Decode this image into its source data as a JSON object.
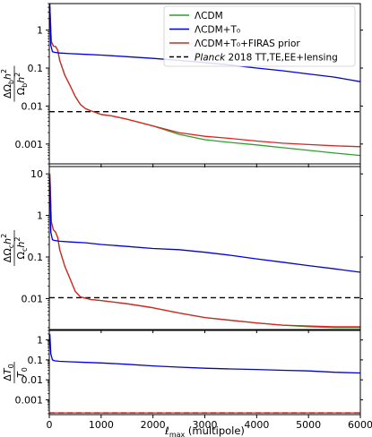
{
  "chart_data": [
    {
      "type": "line",
      "ylabel": "ΔΩ_b h² / Ω_b h²",
      "yscale": "log",
      "ylim": [
        0.0003,
        5
      ],
      "xlim": [
        0,
        6000
      ],
      "yticks": [
        {
          "v": 1,
          "label": "1"
        },
        {
          "v": 0.1,
          "label": "0.1"
        },
        {
          "v": 0.01,
          "label": "0.01"
        },
        {
          "v": 0.001,
          "label": "0.001"
        }
      ],
      "legend": {
        "placement": "top-right",
        "entries": [
          {
            "label": "ΛCDM",
            "series": "lcdm"
          },
          {
            "label": "ΛCDM+T₀",
            "series": "lcdm_t0"
          },
          {
            "label": "ΛCDM+T₀+FIRAS prior",
            "series": "lcdm_t0_firas"
          },
          {
            "label": "Planck 2018 TT,TE,EE+lensing",
            "series": "planck",
            "italic_prefix": "Planck"
          }
        ]
      },
      "series": [
        {
          "id": "lcdm",
          "name": "ΛCDM",
          "color": "#2ca02c",
          "style": "solid",
          "x": [
            10,
            40,
            80,
            120,
            160,
            200,
            300,
            400,
            500,
            600,
            700,
            800,
            1000,
            1200,
            1500,
            2000,
            2500,
            3000,
            3500,
            4000,
            4500,
            5000,
            5500,
            6000
          ],
          "y": [
            4,
            0.5,
            0.38,
            0.37,
            0.3,
            0.16,
            0.065,
            0.035,
            0.018,
            0.011,
            0.0085,
            0.0075,
            0.006,
            0.0055,
            0.0045,
            0.003,
            0.0018,
            0.0013,
            0.0011,
            0.00095,
            0.0008,
            0.00068,
            0.00058,
            0.0005
          ]
        },
        {
          "id": "lcdm_t0",
          "name": "ΛCDM+T₀",
          "color": "#0000dd",
          "style": "solid",
          "x": [
            10,
            30,
            60,
            100,
            200,
            400,
            700,
            1000,
            1500,
            2000,
            2500,
            3000,
            3500,
            4000,
            4500,
            5000,
            5500,
            6000
          ],
          "y": [
            5,
            0.4,
            0.27,
            0.26,
            0.25,
            0.24,
            0.23,
            0.22,
            0.2,
            0.18,
            0.16,
            0.14,
            0.12,
            0.1,
            0.085,
            0.07,
            0.058,
            0.044
          ]
        },
        {
          "id": "lcdm_t0_firas",
          "name": "ΛCDM+T₀+FIRAS prior",
          "color": "#dd2222",
          "style": "solid",
          "x": [
            10,
            40,
            80,
            120,
            160,
            200,
            300,
            400,
            500,
            600,
            700,
            800,
            1000,
            1200,
            1500,
            2000,
            2500,
            3000,
            3500,
            4000,
            4500,
            5000,
            5500,
            6000
          ],
          "y": [
            4,
            0.5,
            0.38,
            0.37,
            0.3,
            0.16,
            0.065,
            0.035,
            0.018,
            0.011,
            0.0085,
            0.0075,
            0.006,
            0.0055,
            0.0045,
            0.003,
            0.002,
            0.0016,
            0.0014,
            0.0012,
            0.00105,
            0.00097,
            0.0009,
            0.00085
          ]
        },
        {
          "id": "planck",
          "name": "Planck 2018 TT,TE,EE+lensing",
          "color": "#000000",
          "style": "dashed",
          "x": [
            0,
            6000
          ],
          "y": [
            0.0071,
            0.0071
          ]
        }
      ]
    },
    {
      "type": "line",
      "ylabel": "ΔΩ_c h² / Ω_c h²",
      "yscale": "log",
      "ylim": [
        0.0018,
        15
      ],
      "xlim": [
        0,
        6000
      ],
      "yticks": [
        {
          "v": 10,
          "label": "10"
        },
        {
          "v": 1,
          "label": "1"
        },
        {
          "v": 0.1,
          "label": "0.1"
        },
        {
          "v": 0.01,
          "label": "0.01"
        }
      ],
      "series": [
        {
          "id": "lcdm",
          "name": "ΛCDM",
          "color": "#2ca02c",
          "style": "solid",
          "x": [
            10,
            40,
            80,
            120,
            160,
            200,
            300,
            400,
            500,
            600,
            800,
            1000,
            1500,
            2000,
            2500,
            3000,
            3500,
            4000,
            4500,
            5000,
            5500,
            6000
          ],
          "y": [
            10,
            0.7,
            0.45,
            0.4,
            0.3,
            0.15,
            0.06,
            0.03,
            0.015,
            0.011,
            0.0095,
            0.009,
            0.0075,
            0.006,
            0.0045,
            0.0035,
            0.003,
            0.0026,
            0.0023,
            0.0021,
            0.002,
            0.002
          ]
        },
        {
          "id": "lcdm_t0",
          "name": "ΛCDM+T₀",
          "color": "#0000dd",
          "style": "solid",
          "x": [
            10,
            30,
            60,
            100,
            200,
            400,
            700,
            1000,
            1500,
            2000,
            2500,
            3000,
            3500,
            4000,
            4500,
            5000,
            5500,
            6000
          ],
          "y": [
            8,
            0.4,
            0.26,
            0.25,
            0.24,
            0.23,
            0.22,
            0.2,
            0.18,
            0.16,
            0.15,
            0.13,
            0.11,
            0.09,
            0.075,
            0.062,
            0.052,
            0.043
          ]
        },
        {
          "id": "lcdm_t0_firas",
          "name": "ΛCDM+T₀+FIRAS prior",
          "color": "#dd2222",
          "style": "solid",
          "x": [
            10,
            40,
            80,
            120,
            160,
            200,
            300,
            400,
            500,
            600,
            800,
            1000,
            1500,
            2000,
            2500,
            3000,
            3500,
            4000,
            4500,
            5000,
            5500,
            6000
          ],
          "y": [
            10,
            0.7,
            0.45,
            0.4,
            0.3,
            0.15,
            0.06,
            0.03,
            0.015,
            0.011,
            0.0095,
            0.009,
            0.0075,
            0.006,
            0.0045,
            0.0035,
            0.003,
            0.0026,
            0.0023,
            0.0022,
            0.0021,
            0.0021
          ]
        },
        {
          "id": "planck",
          "name": "Planck 2018 TT,TE,EE+lensing",
          "color": "#000000",
          "style": "dashed",
          "x": [
            0,
            6000
          ],
          "y": [
            0.0105,
            0.0105
          ]
        }
      ]
    },
    {
      "type": "line",
      "ylabel": "ΔT₀ / T₀",
      "yscale": "log",
      "ylim": [
        0.00018,
        3
      ],
      "xlim": [
        0,
        6000
      ],
      "xlabel": "ℓ_max (multipole)",
      "xticks": [
        {
          "v": 0,
          "label": "0"
        },
        {
          "v": 1000,
          "label": "1000"
        },
        {
          "v": 2000,
          "label": "2000"
        },
        {
          "v": 3000,
          "label": "3000"
        },
        {
          "v": 4000,
          "label": "4000"
        },
        {
          "v": 5000,
          "label": "5000"
        },
        {
          "v": 6000,
          "label": "6000"
        }
      ],
      "yticks": [
        {
          "v": 1,
          "label": "1"
        },
        {
          "v": 0.1,
          "label": "0.1"
        },
        {
          "v": 0.01,
          "label": "0.01"
        },
        {
          "v": 0.001,
          "label": "0.001"
        }
      ],
      "series": [
        {
          "id": "lcdm_t0",
          "name": "ΛCDM+T₀",
          "color": "#0000dd",
          "style": "solid",
          "x": [
            10,
            30,
            60,
            100,
            200,
            400,
            700,
            1000,
            1500,
            2000,
            2500,
            3000,
            3500,
            4000,
            4500,
            5000,
            5500,
            6000
          ],
          "y": [
            2,
            0.2,
            0.1,
            0.09,
            0.085,
            0.08,
            0.075,
            0.07,
            0.06,
            0.05,
            0.043,
            0.038,
            0.035,
            0.033,
            0.03,
            0.028,
            0.024,
            0.022
          ]
        },
        {
          "id": "lcdm_t0_firas",
          "name": "ΛCDM+T₀+FIRAS prior",
          "color": "#dd2222",
          "style": "solid",
          "x": [
            0,
            6000
          ],
          "y": [
            0.00022,
            0.00022
          ]
        },
        {
          "id": "planck",
          "name": "Planck 2018 TT,TE,EE+lensing",
          "color": "#000000",
          "style": "dashed",
          "x": [
            0,
            6000
          ],
          "y": [
            0.00022,
            0.00022
          ]
        }
      ]
    }
  ]
}
